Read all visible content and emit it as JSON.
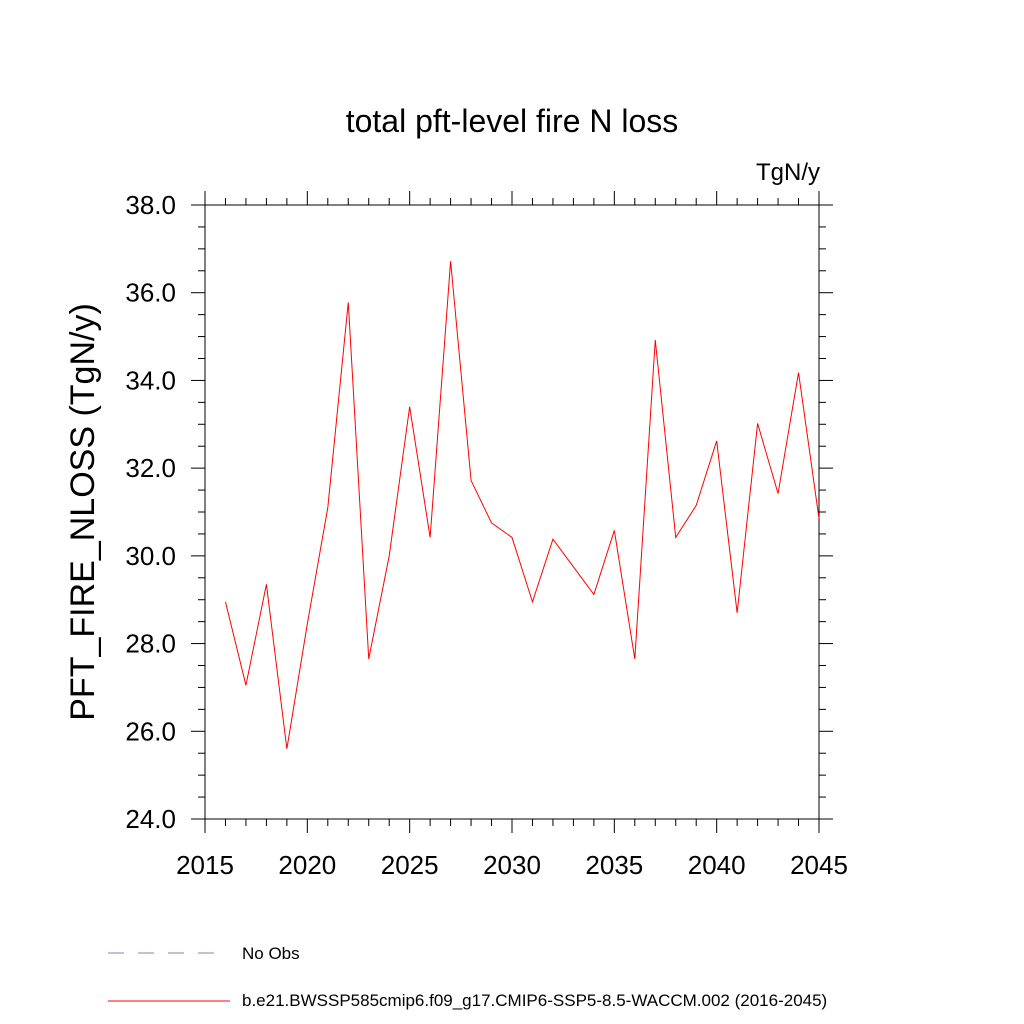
{
  "chart_data": {
    "type": "line",
    "title": "total pft-level fire N loss",
    "units_label": "TgN/y",
    "xlabel": "",
    "ylabel": "PFT_FIRE_NLOSS  (TgN/y)",
    "xlim": [
      2015,
      2045
    ],
    "ylim": [
      24.0,
      38.0
    ],
    "x_ticks": [
      2015,
      2020,
      2025,
      2030,
      2035,
      2040,
      2045
    ],
    "x_tick_labels": [
      "2015",
      "2020",
      "2025",
      "2030",
      "2035",
      "2040",
      "2045"
    ],
    "y_ticks": [
      24,
      26,
      28,
      30,
      32,
      34,
      36,
      38
    ],
    "y_tick_labels": [
      "24.0",
      "26.0",
      "28.0",
      "30.0",
      "32.0",
      "34.0",
      "36.0",
      "38.0"
    ],
    "series": [
      {
        "name": "b.e21.BWSSP585cmip6.f09_g17.CMIP6-SSP5-8.5-WACCM.002 (2016-2045)",
        "color": "#ff0000",
        "x": [
          2016,
          2017,
          2018,
          2019,
          2020,
          2021,
          2022,
          2023,
          2024,
          2025,
          2026,
          2027,
          2028,
          2029,
          2030,
          2031,
          2032,
          2033,
          2034,
          2035,
          2036,
          2037,
          2038,
          2039,
          2040,
          2041,
          2042,
          2043,
          2044,
          2045
        ],
        "values": [
          28.95,
          27.05,
          29.35,
          25.6,
          28.45,
          31.1,
          35.78,
          27.65,
          30.0,
          33.4,
          30.42,
          36.72,
          31.72,
          30.75,
          30.42,
          28.95,
          30.38,
          29.75,
          29.12,
          30.58,
          27.65,
          34.92,
          30.42,
          31.15,
          32.62,
          28.7,
          33.02,
          31.42,
          34.18,
          30.85
        ]
      }
    ],
    "legend": [
      {
        "label": "No Obs",
        "style": "dashed",
        "color": "#8080c0"
      },
      {
        "label": "b.e21.BWSSP585cmip6.f09_g17.CMIP6-SSP5-8.5-WACCM.002 (2016-2045)",
        "style": "solid",
        "color": "#ff0000"
      }
    ],
    "legend_position": "bottom-left"
  }
}
